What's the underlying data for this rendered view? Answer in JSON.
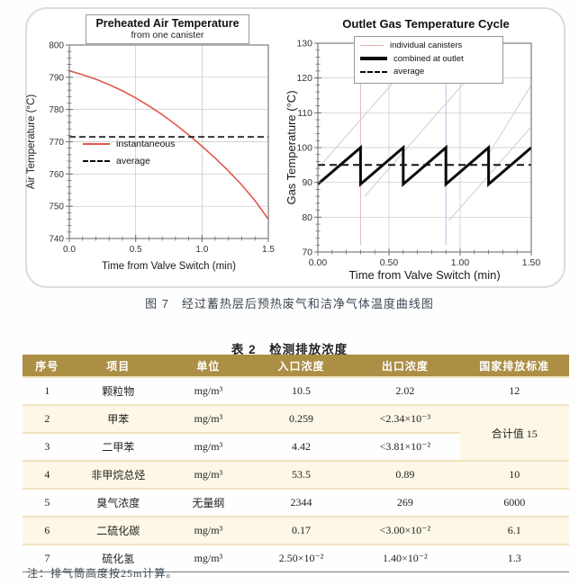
{
  "figure": {
    "caption": "图 7　经过蓄热层后预热废气和洁净气体温度曲线图"
  },
  "chart_data": [
    {
      "type": "line",
      "title": "Preheated Air Temperature",
      "subtitle": "from one canister",
      "xlabel": "Time from Valve Switch (min)",
      "ylabel": "Air Temperature (°C)",
      "xlim": [
        0,
        1.5
      ],
      "ylim": [
        740,
        800
      ],
      "grid": true,
      "xticks": [
        [
          0,
          "0.0"
        ],
        [
          0.5,
          "0.5"
        ],
        [
          1.0,
          "1.0"
        ],
        [
          1.5,
          "1.5"
        ]
      ],
      "yticks": [
        [
          740,
          "740"
        ],
        [
          750,
          "750"
        ],
        [
          760,
          "760"
        ],
        [
          770,
          "770"
        ],
        [
          780,
          "780"
        ],
        [
          790,
          "790"
        ],
        [
          800,
          "800"
        ]
      ],
      "x_minor_step": 0.1,
      "y_minor_step": 2,
      "series": [
        {
          "name": "instantaneous",
          "color": "#e2584a",
          "width": 1.6,
          "dash": null,
          "points": [
            [
              0,
              792
            ],
            [
              0.1,
              790.8
            ],
            [
              0.2,
              789.4
            ],
            [
              0.3,
              787.7
            ],
            [
              0.4,
              785.8
            ],
            [
              0.5,
              783.6
            ],
            [
              0.6,
              781.1
            ],
            [
              0.7,
              778.4
            ],
            [
              0.8,
              775.4
            ],
            [
              0.9,
              772.1
            ],
            [
              1.0,
              768.6
            ],
            [
              1.1,
              764.9
            ],
            [
              1.2,
              760.9
            ],
            [
              1.3,
              756.6
            ],
            [
              1.4,
              751.7
            ],
            [
              1.5,
              746
            ]
          ]
        },
        {
          "name": "average",
          "color": "#141414",
          "width": 1.6,
          "dash": "7,4",
          "points": [
            [
              0,
              771.5
            ],
            [
              1.5,
              771.5
            ]
          ]
        }
      ],
      "legend": {
        "position": "inside-left",
        "items": [
          {
            "label": "instantaneous"
          },
          {
            "label": "average"
          }
        ]
      }
    },
    {
      "type": "line",
      "title": "Outlet Gas Temperature Cycle",
      "xlabel": "Time from Valve Switch (min)",
      "ylabel": "Gas Temperature (°C)",
      "xlim": [
        0,
        1.5
      ],
      "ylim": [
        70,
        130
      ],
      "grid": true,
      "xticks": [
        [
          0,
          "0.00"
        ],
        [
          0.5,
          "0.50"
        ],
        [
          1.0,
          "1.00"
        ],
        [
          1.5,
          "1.50"
        ]
      ],
      "yticks": [
        [
          70,
          "70"
        ],
        [
          80,
          "80"
        ],
        [
          90,
          "90"
        ],
        [
          100,
          "100"
        ],
        [
          110,
          "110"
        ],
        [
          120,
          "120"
        ],
        [
          130,
          "130"
        ]
      ],
      "x_minor_step": 0.1,
      "y_minor_step": 2,
      "series": [
        {
          "name": "individual canisters",
          "color": "#d9b6b2",
          "width": 0.9,
          "dash": null,
          "points": [
            [
              0.3,
              72
            ],
            [
              0.3,
              122
            ]
          ]
        },
        {
          "name": "individual canisters",
          "color": "#b4bcd9",
          "width": 0.9,
          "dash": null,
          "points": [
            [
              0.9,
              72
            ],
            [
              0.9,
              122
            ]
          ]
        },
        {
          "name": "individual canisters",
          "color": "#c6cacd",
          "width": 0.9,
          "dash": null,
          "points": [
            [
              0,
              94
            ],
            [
              0.6,
              122
            ]
          ]
        },
        {
          "name": "individual canisters",
          "color": "#c6cacd",
          "width": 0.9,
          "dash": null,
          "points": [
            [
              0.33,
              86
            ],
            [
              1.1,
              122
            ]
          ]
        },
        {
          "name": "individual canisters",
          "color": "#c6cacd",
          "width": 0.9,
          "dash": null,
          "points": [
            [
              0.92,
              79
            ],
            [
              1.5,
              106
            ]
          ]
        },
        {
          "name": "individual canisters",
          "color": "#c6cacd",
          "width": 0.9,
          "dash": null,
          "points": [
            [
              1.2,
              98
            ],
            [
              1.5,
              118
            ]
          ]
        },
        {
          "name": "combined at outlet",
          "color": "#0a0a0a",
          "width": 3,
          "dash": null,
          "points": [
            [
              0,
              89.5
            ],
            [
              0.3,
              100
            ],
            [
              0.3,
              89.5
            ],
            [
              0.6,
              100
            ],
            [
              0.6,
              89.5
            ],
            [
              0.9,
              100
            ],
            [
              0.9,
              89.5
            ],
            [
              1.2,
              100
            ],
            [
              1.2,
              89.5
            ],
            [
              1.5,
              100
            ]
          ]
        },
        {
          "name": "average",
          "color": "#141414",
          "width": 2,
          "dash": "8,5",
          "points": [
            [
              0,
              95
            ],
            [
              1.5,
              95
            ]
          ]
        }
      ],
      "legend": {
        "position": "inside-top",
        "items": [
          {
            "label": "individual canisters"
          },
          {
            "label": "combined at outlet"
          },
          {
            "label": "average"
          }
        ]
      }
    }
  ],
  "table": {
    "title": "表 2　检测排放浓度",
    "header_bg": "#ac8e45",
    "columns": [
      "序号",
      "项目",
      "单位",
      "入口浓度",
      "出口浓度",
      "国家排放标准"
    ],
    "rows": [
      [
        "1",
        "颗粒物",
        "mg/m³",
        "10.5",
        "2.02",
        "12"
      ],
      [
        "2",
        "甲苯",
        "mg/m³",
        "0.259",
        "<2.34×10⁻³",
        "合计值 15"
      ],
      [
        "3",
        "二甲苯",
        "mg/m³",
        "4.42",
        "<3.81×10⁻²",
        null
      ],
      [
        "4",
        "非甲烷总烃",
        "mg/m³",
        "53.5",
        "0.89",
        "10"
      ],
      [
        "5",
        "臭气浓度",
        "无量纲",
        "2344",
        "269",
        "6000"
      ],
      [
        "6",
        "二硫化碳",
        "mg/m³",
        "0.17",
        "<3.00×10⁻²",
        "6.1"
      ],
      [
        "7",
        "硫化氢",
        "mg/m³",
        "2.50×10⁻²",
        "1.40×10⁻²",
        "1.3"
      ]
    ],
    "note": "注：排气筒高度按25m计算。"
  }
}
